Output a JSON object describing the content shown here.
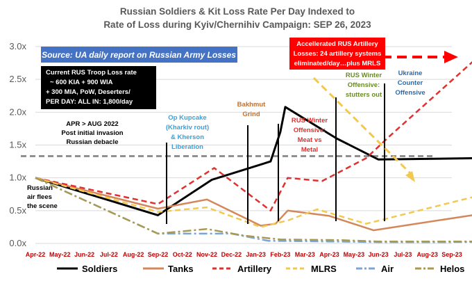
{
  "chart_data": {
    "type": "line",
    "title": [
      "Russian Soldiers & Kit Loss Rate Per Day Indexed to",
      "Rate of Loss during Kyiv/Chernihiv Campaign: SEP 26, 2023"
    ],
    "xlabel": "",
    "ylabel": "",
    "categories": [
      "Apr-22",
      "May-22",
      "Jun-22",
      "Jul-22",
      "Aug-22",
      "Sep-22",
      "Oct-22",
      "Nov-22",
      "Dec-22",
      "Jan-23",
      "Feb-23",
      "Mar-23",
      "Apr-23",
      "May-23",
      "Jun-23",
      "Jul-23",
      "Aug-23",
      "Sep-23"
    ],
    "ylim": [
      0,
      3.0
    ],
    "yticks": [
      "0.0x",
      "0.5x",
      "1.0x",
      "1.5x",
      "2.0x",
      "2.5x",
      "3.0x"
    ],
    "reference_line": 1.33,
    "series": [
      {
        "name": "Soldiers",
        "color": "#000000",
        "dash": "solid",
        "points": [
          [
            0,
            1.0
          ],
          [
            5.0,
            0.43
          ],
          [
            7.2,
            0.97
          ],
          [
            9.6,
            1.25
          ],
          [
            10.0,
            1.7
          ],
          [
            10.2,
            2.08
          ],
          [
            12.3,
            1.6
          ],
          [
            14.0,
            1.28
          ],
          [
            18.0,
            1.3
          ]
        ]
      },
      {
        "name": "Tanks",
        "color": "#d4875a",
        "dash": "solid",
        "points": [
          [
            0,
            1.0
          ],
          [
            5.0,
            0.53
          ],
          [
            7.0,
            0.67
          ],
          [
            9.2,
            0.27
          ],
          [
            9.8,
            0.3
          ],
          [
            10.3,
            0.5
          ],
          [
            12.0,
            0.42
          ],
          [
            13.8,
            0.2
          ],
          [
            18.0,
            0.44
          ]
        ]
      },
      {
        "name": "Artillery",
        "color": "#e03030",
        "dash": "dash",
        "points": [
          [
            0,
            1.0
          ],
          [
            5.0,
            0.6
          ],
          [
            7.3,
            1.15
          ],
          [
            9.6,
            0.5
          ],
          [
            10.3,
            1.0
          ],
          [
            11.7,
            0.95
          ],
          [
            13.5,
            1.3
          ],
          [
            14.5,
            1.65
          ],
          [
            18.0,
            2.82
          ]
        ]
      },
      {
        "name": "MLRS",
        "color": "#f2c94c",
        "dash": "dash",
        "points": [
          [
            0,
            1.0
          ],
          [
            5.0,
            0.48
          ],
          [
            7.0,
            0.55
          ],
          [
            9.2,
            0.25
          ],
          [
            10.3,
            0.35
          ],
          [
            11.5,
            0.52
          ],
          [
            13.5,
            0.3
          ],
          [
            18.0,
            0.72
          ]
        ]
      },
      {
        "name": "Air",
        "color": "#7aa6d6",
        "dash": "dashdot",
        "points": [
          [
            0,
            1.0
          ],
          [
            5.0,
            0.15
          ],
          [
            8.0,
            0.15
          ],
          [
            9.5,
            0.04
          ],
          [
            12.0,
            0.03
          ],
          [
            14.0,
            0.02
          ],
          [
            18.0,
            0.02
          ]
        ]
      },
      {
        "name": "Helos",
        "color": "#a89a50",
        "dash": "dashdot",
        "points": [
          [
            0,
            1.0
          ],
          [
            5.0,
            0.15
          ],
          [
            7.0,
            0.22
          ],
          [
            8.5,
            0.12
          ],
          [
            10.0,
            0.06
          ],
          [
            12.5,
            0.05
          ],
          [
            14.0,
            0.03
          ],
          [
            18.0,
            0.03
          ]
        ]
      }
    ],
    "legend": "bottom"
  },
  "annotations": {
    "source": "Source: UA daily report on Russian Army Losses",
    "troop_box": [
      "Current RUS Troop Loss rate",
      "~ 600 KIA + 900 WIA",
      "+ 300 MIA, PoW, Deserters/",
      "PER DAY: ALL IN: 1,800/day"
    ],
    "artillery_box": [
      "Accellerated RUS Artillery",
      "Losses: 24 artillery systems",
      "eliminated/day…plus MRLS"
    ],
    "apr_aug": [
      "APR > AUG 2022",
      "Post initial invasion",
      "Russian debacle"
    ],
    "air_flees": [
      "Russian",
      "air flees",
      "the scene"
    ],
    "kupcake": [
      "Op Kupcake",
      "(Kharkiv rout)",
      "& Kherson",
      "Liberation"
    ],
    "bakhmut": [
      "Bakhmut",
      "Grind"
    ],
    "winter_offensive": [
      "RUS Winter",
      "Offensive:",
      "Meat vs",
      "Metal"
    ],
    "winter_stutters": [
      "RUS Winter",
      "Offensive:",
      "stutters out"
    ],
    "ukraine_counter": [
      "Ukraine",
      "Counter",
      "Offensive"
    ]
  },
  "colors": {
    "source_box": "#4472c4",
    "troop_box": "#000000",
    "artillery_box": "#ff0000",
    "ref_line": "#909090",
    "grid": "#d9d9d9"
  }
}
